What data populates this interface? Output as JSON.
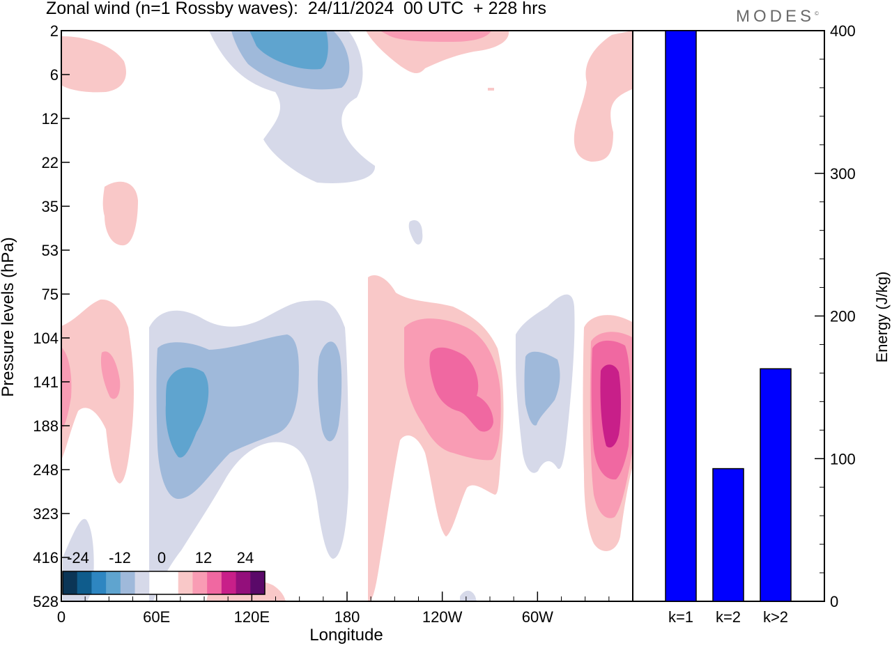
{
  "title": "Zonal wind (n=1 Rossby waves):  24/11/2024  00 UTC  + 228 hrs",
  "brand": "MODES",
  "brand_mark": "©",
  "colors": {
    "scale": [
      "#0b3556",
      "#0f5c8c",
      "#2e86c1",
      "#5fa4cf",
      "#9fb9da",
      "#d6d9e9",
      "#ffffff",
      "#ffffff",
      "#f9c8c8",
      "#f99cb4",
      "#f068a1",
      "#c81f89",
      "#930f7b",
      "#5a0969"
    ],
    "bar": "#0000ff"
  },
  "contour_chart": {
    "type": "heatmap",
    "ylabel": "Pressure levels (hPa)",
    "xlabel": "Longitude",
    "x_ticks": [
      "0",
      "60E",
      "120E",
      "180",
      "120W",
      "60W"
    ],
    "y_ticks": [
      "2",
      "6",
      "12",
      "22",
      "35",
      "53",
      "75",
      "104",
      "141",
      "188",
      "248",
      "323",
      "416",
      "528"
    ],
    "colorbar_labels": [
      "-24",
      "-12",
      "0",
      "12",
      "24"
    ]
  },
  "chart_data": {
    "type": "bar",
    "categories": [
      "k=1",
      "k=2",
      "k>2"
    ],
    "values": [
      400,
      93,
      163
    ],
    "ylabel": "Energy (J/kg)",
    "ylim": [
      0,
      400
    ],
    "y_ticks": [
      "0",
      "100",
      "200",
      "300",
      "400"
    ]
  }
}
